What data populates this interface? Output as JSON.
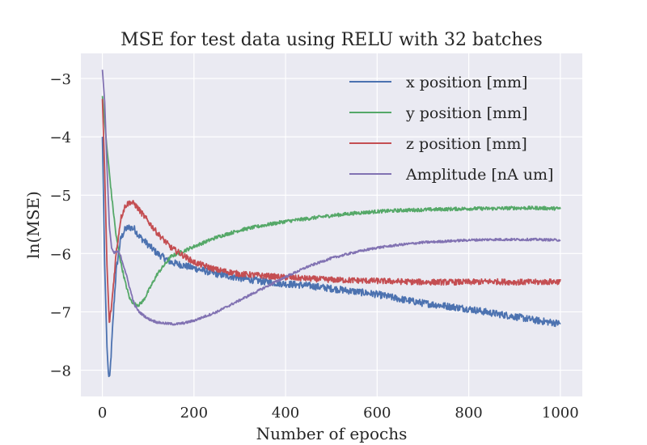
{
  "chart_data": {
    "type": "line",
    "title": "MSE for test data using RELU with 32 batches",
    "xlabel": "Number of epochs",
    "ylabel": "ln(MSE)",
    "xlim": [
      -47,
      1048
    ],
    "ylim": [
      -8.45,
      -2.57
    ],
    "xticks": [
      0,
      200,
      400,
      600,
      800,
      1000
    ],
    "yticks": [
      -8,
      -7,
      -6,
      -5,
      -4,
      -3
    ],
    "xtick_labels": [
      "0",
      "200",
      "400",
      "600",
      "800",
      "1000"
    ],
    "ytick_labels": [
      "−8",
      "−7",
      "−6",
      "−5",
      "−4",
      "−3"
    ],
    "grid": true,
    "legend_position": "top-right",
    "background": "#eaeaf2",
    "series": [
      {
        "name": "x position [mm]",
        "color": "#4c72b0",
        "noise": 0.06,
        "x": [
          0,
          5,
          10,
          13,
          16,
          20,
          25,
          30,
          40,
          50,
          60,
          70,
          80,
          100,
          120,
          150,
          200,
          250,
          300,
          350,
          400,
          450,
          500,
          550,
          600,
          650,
          700,
          750,
          800,
          850,
          900,
          950,
          1000
        ],
        "y": [
          -4.0,
          -6.2,
          -7.6,
          -8.05,
          -8.15,
          -7.6,
          -6.9,
          -6.3,
          -5.75,
          -5.58,
          -5.55,
          -5.58,
          -5.7,
          -5.85,
          -6.0,
          -6.15,
          -6.25,
          -6.35,
          -6.42,
          -6.48,
          -6.52,
          -6.55,
          -6.6,
          -6.65,
          -6.7,
          -6.78,
          -6.85,
          -6.9,
          -6.95,
          -7.02,
          -7.08,
          -7.15,
          -7.2
        ]
      },
      {
        "name": "y position [mm]",
        "color": "#55a868",
        "noise": 0.03,
        "x": [
          0,
          5,
          10,
          20,
          30,
          40,
          50,
          60,
          70,
          80,
          90,
          100,
          120,
          150,
          200,
          250,
          300,
          350,
          400,
          450,
          500,
          550,
          600,
          650,
          700,
          750,
          800,
          850,
          900,
          950,
          1000
        ],
        "y": [
          -3.3,
          -3.75,
          -4.2,
          -5.0,
          -5.7,
          -6.15,
          -6.5,
          -6.78,
          -6.87,
          -6.88,
          -6.8,
          -6.65,
          -6.35,
          -6.05,
          -5.88,
          -5.72,
          -5.6,
          -5.52,
          -5.45,
          -5.4,
          -5.35,
          -5.31,
          -5.28,
          -5.26,
          -5.25,
          -5.24,
          -5.23,
          -5.23,
          -5.22,
          -5.22,
          -5.23
        ]
      },
      {
        "name": "z position [mm]",
        "color": "#c44e52",
        "noise": 0.05,
        "x": [
          0,
          5,
          10,
          15,
          20,
          30,
          40,
          50,
          60,
          70,
          80,
          100,
          120,
          150,
          200,
          250,
          300,
          350,
          400,
          450,
          500,
          550,
          600,
          650,
          700,
          750,
          800,
          850,
          900,
          950,
          1000
        ],
        "y": [
          -3.35,
          -4.6,
          -6.2,
          -7.2,
          -6.9,
          -6.0,
          -5.4,
          -5.18,
          -5.12,
          -5.15,
          -5.25,
          -5.45,
          -5.65,
          -5.9,
          -6.15,
          -6.28,
          -6.35,
          -6.38,
          -6.41,
          -6.43,
          -6.45,
          -6.46,
          -6.47,
          -6.48,
          -6.49,
          -6.49,
          -6.49,
          -6.48,
          -6.49,
          -6.49,
          -6.48
        ]
      },
      {
        "name": "Amplitude [nA um]",
        "color": "#8172b2",
        "noise": 0.02,
        "x": [
          0,
          5,
          10,
          15,
          20,
          25,
          30,
          35,
          40,
          50,
          60,
          70,
          80,
          100,
          120,
          140,
          160,
          180,
          200,
          250,
          300,
          350,
          400,
          450,
          500,
          550,
          600,
          650,
          700,
          750,
          800,
          850,
          900,
          950,
          1000
        ],
        "y": [
          -2.85,
          -3.4,
          -4.5,
          -5.5,
          -5.9,
          -6.0,
          -5.97,
          -5.97,
          -6.05,
          -6.3,
          -6.6,
          -6.88,
          -7.0,
          -7.12,
          -7.18,
          -7.2,
          -7.21,
          -7.19,
          -7.15,
          -7.0,
          -6.8,
          -6.6,
          -6.4,
          -6.22,
          -6.08,
          -5.98,
          -5.9,
          -5.85,
          -5.81,
          -5.79,
          -5.77,
          -5.76,
          -5.76,
          -5.76,
          -5.77
        ]
      }
    ]
  }
}
